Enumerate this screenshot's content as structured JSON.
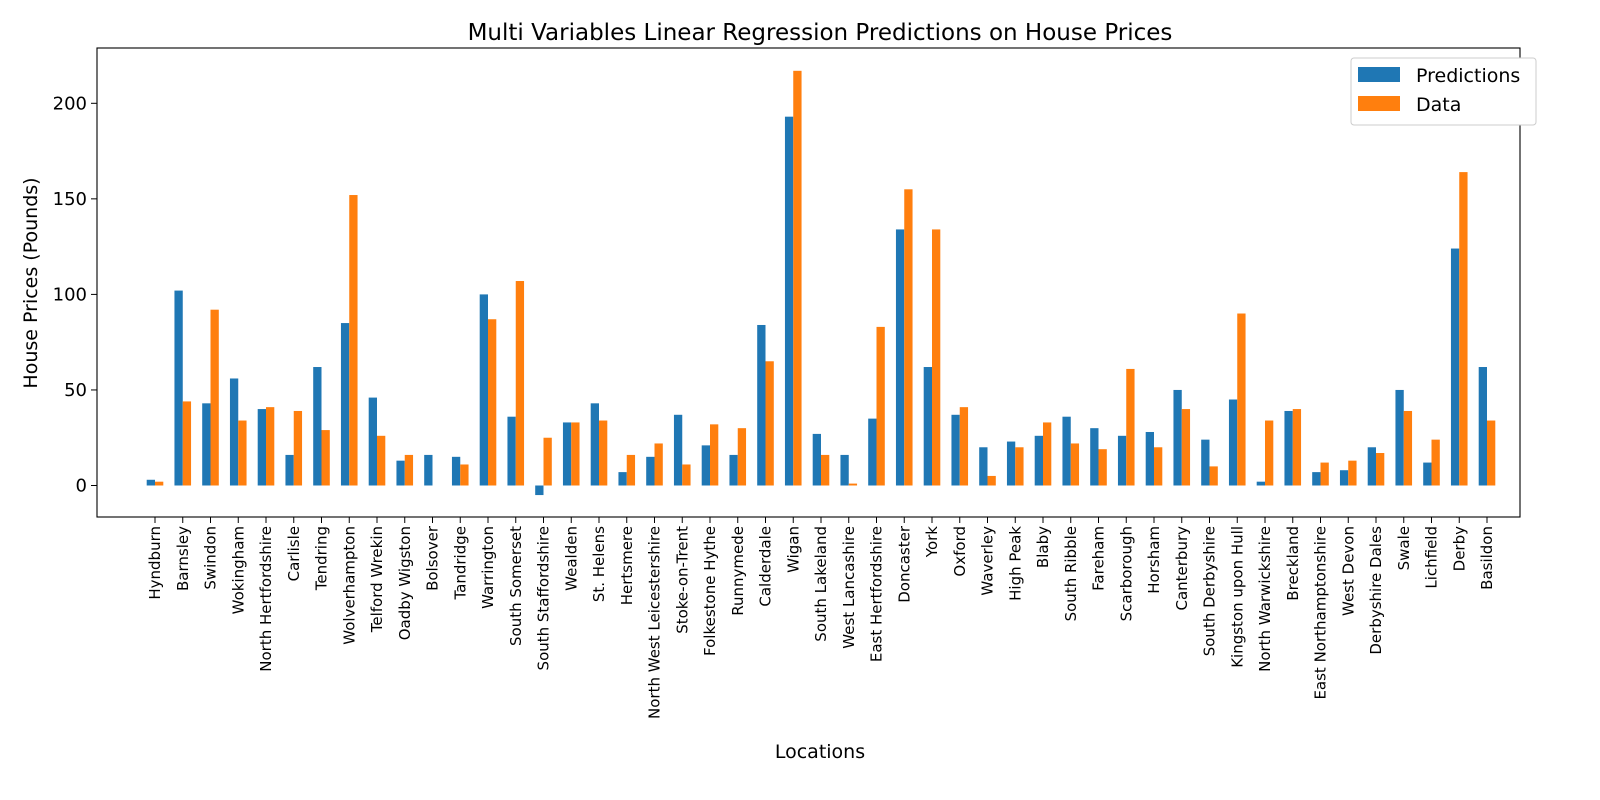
{
  "chart_data": {
    "type": "bar",
    "title": "Multi Variables Linear Regression Predictions on House Prices",
    "xlabel": "Locations",
    "ylabel": "House Prices (Pounds)",
    "ylim": [
      -17,
      229
    ],
    "yticks": [
      0,
      50,
      100,
      150,
      200
    ],
    "grid": false,
    "legend": {
      "placement": "top-right"
    },
    "categories": [
      "Hyndburn",
      "Barnsley",
      "Swindon",
      "Wokingham",
      "North Hertfordshire",
      "Carlisle",
      "Tendring",
      "Wolverhampton",
      "Telford Wrekin",
      "Oadby Wigston",
      "Bolsover",
      "Tandridge",
      "Warrington",
      "South Somerset",
      "South Staffordshire",
      "Wealden",
      "St. Helens",
      "Hertsmere",
      "North West Leicestershire",
      "Stoke-on-Trent",
      "Folkestone Hythe",
      "Runnymede",
      "Calderdale",
      "Wigan",
      "South Lakeland",
      "West Lancashire",
      "East Hertfordshire",
      "Doncaster",
      "York",
      "Oxford",
      "Waverley",
      "High Peak",
      "Blaby",
      "South Ribble",
      "Fareham",
      "Scarborough",
      "Horsham",
      "Canterbury",
      "South Derbyshire",
      "Kingston upon Hull",
      "North Warwickshire",
      "Breckland",
      "East Northamptonshire",
      "West Devon",
      "Derbyshire Dales",
      "Swale",
      "Lichfield",
      "Derby",
      "Basildon"
    ],
    "series": [
      {
        "name": "Predictions",
        "color": "#1f77b4",
        "values": [
          3,
          102,
          43,
          56,
          40,
          16,
          62,
          85,
          46,
          13,
          16,
          15,
          100,
          36,
          -5,
          33,
          43,
          7,
          15,
          37,
          21,
          16,
          84,
          193,
          27,
          16,
          35,
          134,
          62,
          37,
          20,
          23,
          26,
          36,
          30,
          26,
          28,
          50,
          24,
          45,
          2,
          39,
          7,
          8,
          20,
          50,
          12,
          124,
          62
        ]
      },
      {
        "name": "Data",
        "color": "#ff7f0e",
        "values": [
          2,
          44,
          92,
          34,
          41,
          39,
          29,
          152,
          26,
          16,
          0,
          11,
          87,
          107,
          25,
          33,
          34,
          16,
          22,
          11,
          32,
          30,
          65,
          217,
          16,
          1,
          83,
          155,
          134,
          41,
          5,
          20,
          33,
          22,
          19,
          61,
          20,
          40,
          10,
          90,
          34,
          40,
          12,
          13,
          17,
          39,
          24,
          164,
          34
        ]
      }
    ]
  }
}
